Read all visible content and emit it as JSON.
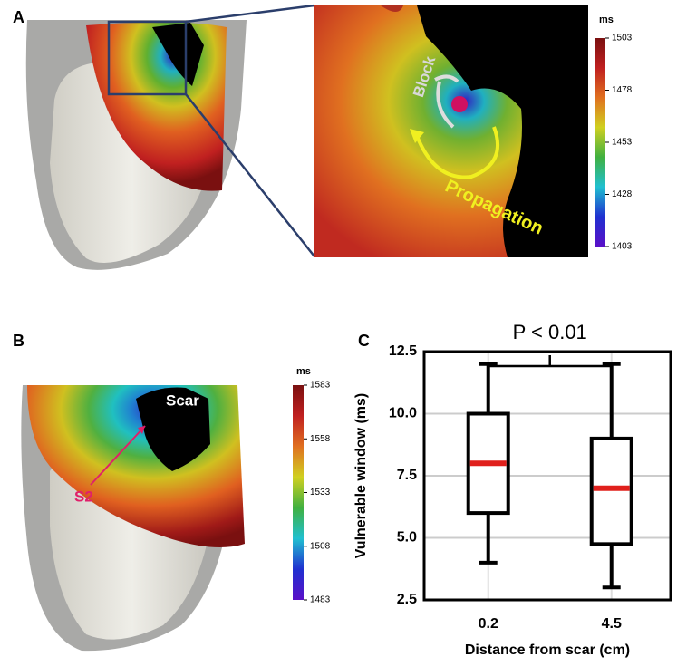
{
  "chart_data": [
    {
      "type": "colormap",
      "panel_label": "A",
      "unit": "ms",
      "clim": [
        1403,
        1503
      ],
      "ticks": [
        1503,
        1478,
        1453,
        1428,
        1403
      ],
      "colormap": [
        "#5a10c8",
        "#2030d0",
        "#20c0d0",
        "#40b040",
        "#d0d020",
        "#e07020",
        "#c02020",
        "#7a1010"
      ],
      "annotations": [
        "Block",
        "Propagation"
      ]
    },
    {
      "type": "colormap",
      "panel_label": "B",
      "unit": "ms",
      "clim": [
        1483,
        1583
      ],
      "ticks": [
        1583,
        1558,
        1533,
        1508,
        1483
      ],
      "colormap": [
        "#5a10c8",
        "#2030d0",
        "#20c0d0",
        "#40b040",
        "#d0d020",
        "#e07020",
        "#c02020",
        "#7a1010"
      ],
      "annotations": [
        "Scar",
        "S2"
      ]
    },
    {
      "type": "box",
      "panel_label": "C",
      "annotation": "P < 0.01",
      "ylabel": "Vulnerable window (ms)",
      "xlabel": "Distance from scar (cm)",
      "categories": [
        "0.2",
        "4.5"
      ],
      "boxes": [
        {
          "whislo": 4,
          "q1": 6,
          "med": 8,
          "q3": 10,
          "whishi": 12
        },
        {
          "whislo": 3,
          "q1": 4.75,
          "med": 7,
          "q3": 9,
          "whishi": 12
        }
      ],
      "box_color": "#000000",
      "median_color": "#e0201c",
      "ylim": [
        2.5,
        12.5
      ],
      "yticks": [
        2.5,
        {
          "value": 5,
          "label": "5.0"
        },
        7.5,
        {
          "value": 10,
          "label": "10.0"
        },
        12.5
      ],
      "grid": true
    }
  ]
}
